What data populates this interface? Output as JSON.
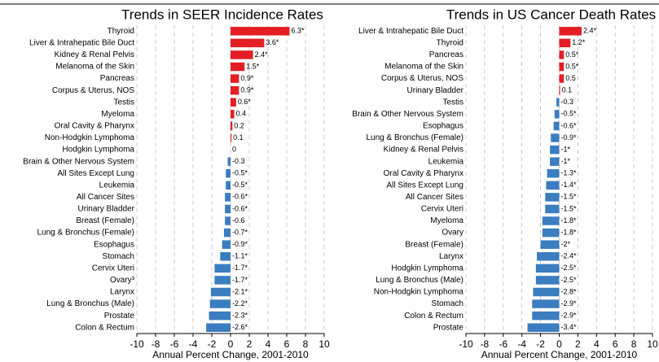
{
  "chart_data": [
    {
      "type": "barh",
      "title": "Trends in SEER Incidence Rates",
      "xlabel": "Annual Percent Change, 2001-2010",
      "categories": [
        "Thyroid",
        "Liver & Intrahepatic Bile Duct",
        "Kidney & Renal Pelvis",
        "Melanoma of the Skin",
        "Pancreas",
        "Corpus & Uterus, NOS",
        "Testis",
        "Myeloma",
        "Oral Cavity & Pharynx",
        "Non-Hodgkin Lymphoma",
        "Hodgkin Lymphoma",
        "Brain & Other Nervous System",
        "All Sites Except Lung",
        "Leukemia",
        "All Cancer Sites",
        "Urinary Bladder",
        "Breast (Female)",
        "Lung & Bronchus (Female)",
        "Esophagus",
        "Stomach",
        "Cervix Uteri",
        "Ovary³",
        "Larynx",
        "Lung & Bronchus (Male)",
        "Prostate",
        "Colon & Rectum"
      ],
      "values": [
        6.3,
        3.6,
        2.4,
        1.5,
        0.9,
        0.9,
        0.6,
        0.4,
        0.2,
        0.1,
        0,
        -0.3,
        -0.5,
        -0.5,
        -0.6,
        -0.6,
        -0.6,
        -0.7,
        -0.9,
        -1.1,
        -1.7,
        -1.7,
        -2.1,
        -2.2,
        -2.3,
        -2.6
      ],
      "value_labels": [
        "6.3*",
        "3.6*",
        "2.4*",
        "1.5*",
        "0.9*",
        "0.9*",
        "0.6*",
        "0.4",
        "0.2",
        "0.1",
        "0",
        "-0.3",
        "-0.5*",
        "-0.5*",
        "-0.6*",
        "-0.6*",
        "-0.6",
        "-0.7*",
        "-0.9*",
        "-1.1*",
        "-1.7*",
        "-1.7*",
        "-2.1*",
        "-2.2*",
        "-2.3*",
        "-2.6*"
      ],
      "positive_color": "#e31e24",
      "negative_color": "#3a7dc0",
      "xlim": [
        -10,
        10
      ],
      "xticks": [
        -10,
        -8,
        -6,
        -4,
        -2,
        0,
        2,
        4,
        6,
        8,
        10
      ],
      "grid": true
    },
    {
      "type": "barh",
      "title": "Trends in US Cancer Death Rates",
      "xlabel": "Annual Percent Change, 2001-2010",
      "categories": [
        "Liver & Intrahepatic Bile Duct",
        "Thyroid",
        "Pancreas",
        "Melanoma of the Skin",
        "Corpus & Uterus, NOS",
        "Urinary Bladder",
        "Testis",
        "Brain & Other Nervous System",
        "Esophagus",
        "Lung & Bronchus (Female)",
        "Kidney & Renal Pelvis",
        "Leukemia",
        "Oral Cavity & Pharynx",
        "All Sites Except Lung",
        "All Cancer Sites",
        "Cervix Uteri",
        "Myeloma",
        "Ovary",
        "Breast (Female)",
        "Larynx",
        "Hodgkin Lymphoma",
        "Lung & Bronchus (Male)",
        "Non-Hodgkin Lymphoma",
        "Stomach",
        "Colon & Rectum",
        "Prostate"
      ],
      "values": [
        2.4,
        1.2,
        0.5,
        0.5,
        0.5,
        0.1,
        -0.3,
        -0.5,
        -0.6,
        -0.9,
        -1,
        -1,
        -1.3,
        -1.4,
        -1.5,
        -1.5,
        -1.8,
        -1.8,
        -2,
        -2.4,
        -2.5,
        -2.5,
        -2.8,
        -2.9,
        -2.9,
        -3.4
      ],
      "value_labels": [
        "2.4*",
        "1.2*",
        "0.5*",
        "0.5*",
        "0.5",
        "0.1",
        "-0.3",
        "-0.5*",
        "-0.6*",
        "-0.9*",
        "-1*",
        "-1*",
        "-1.3*",
        "-1.4*",
        "-1.5*",
        "-1.5*",
        "-1.8*",
        "-1.8*",
        "-2*",
        "-2.4*",
        "-2.5*",
        "-2.5*",
        "-2.8*",
        "-2.9*",
        "-2.9*",
        "-3.4*"
      ],
      "positive_color": "#e31e24",
      "negative_color": "#3a7dc0",
      "xlim": [
        -10,
        10
      ],
      "xticks": [
        -10,
        -8,
        -6,
        -4,
        -2,
        0,
        2,
        4,
        6,
        8,
        10
      ],
      "grid": true
    }
  ]
}
